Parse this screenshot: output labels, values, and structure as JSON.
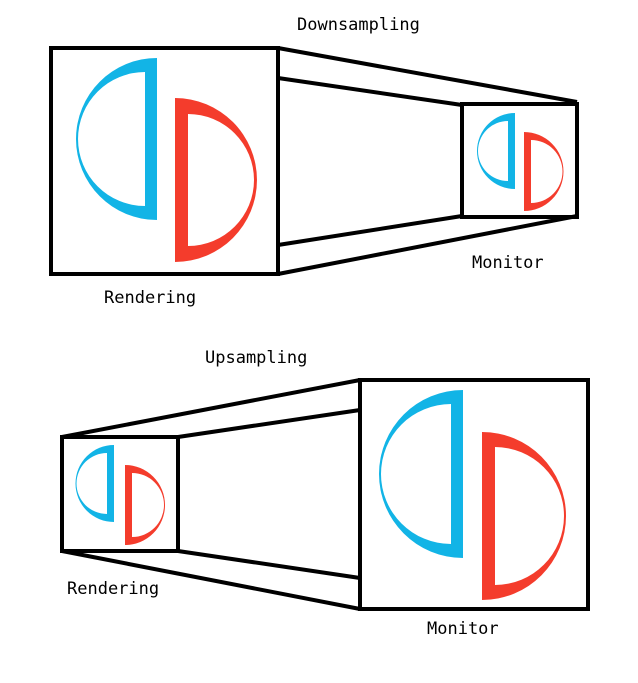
{
  "colors": {
    "blue": "#12b4e6",
    "red": "#f43c2c",
    "line": "#000000"
  },
  "downsampling": {
    "title": "Downsampling",
    "source_label": "Rendering",
    "target_label": "Monitor"
  },
  "upsampling": {
    "title": "Upsampling",
    "source_label": "Rendering",
    "target_label": "Monitor"
  }
}
